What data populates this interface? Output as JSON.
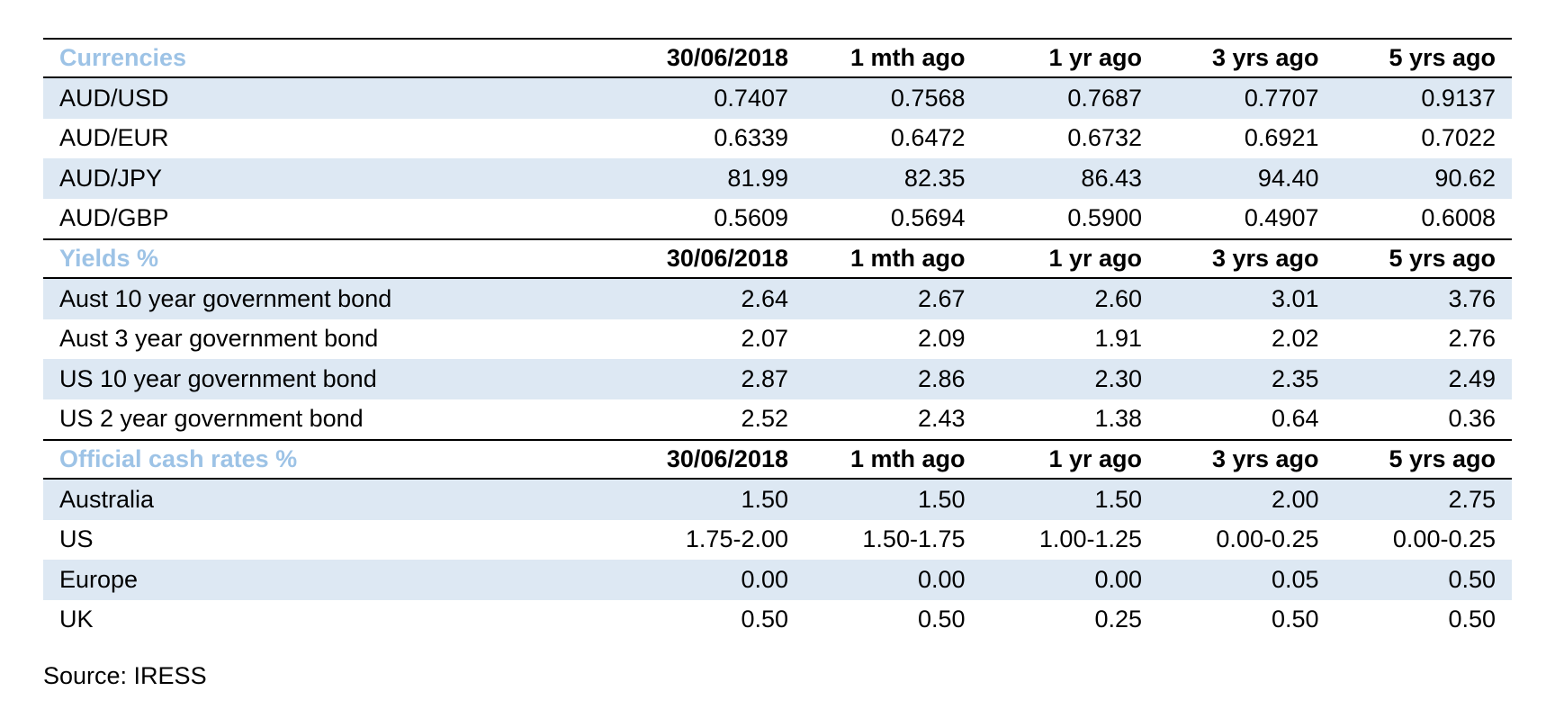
{
  "columns": [
    "30/06/2018",
    "1 mth ago",
    "1 yr ago",
    "3 yrs ago",
    "5 yrs ago"
  ],
  "sections": [
    {
      "title": "Currencies",
      "rows": [
        {
          "label": "AUD/USD",
          "values": [
            "0.7407",
            "0.7568",
            "0.7687",
            "0.7707",
            "0.9137"
          ]
        },
        {
          "label": "AUD/EUR",
          "values": [
            "0.6339",
            "0.6472",
            "0.6732",
            "0.6921",
            "0.7022"
          ]
        },
        {
          "label": "AUD/JPY",
          "values": [
            "81.99",
            "82.35",
            "86.43",
            "94.40",
            "90.62"
          ]
        },
        {
          "label": "AUD/GBP",
          "values": [
            "0.5609",
            "0.5694",
            "0.5900",
            "0.4907",
            "0.6008"
          ]
        }
      ]
    },
    {
      "title": "Yields %",
      "rows": [
        {
          "label": "Aust 10 year government bond",
          "values": [
            "2.64",
            "2.67",
            "2.60",
            "3.01",
            "3.76"
          ]
        },
        {
          "label": "Aust 3 year government bond",
          "values": [
            "2.07",
            "2.09",
            "1.91",
            "2.02",
            "2.76"
          ]
        },
        {
          "label": "US 10 year government bond",
          "values": [
            "2.87",
            "2.86",
            "2.30",
            "2.35",
            "2.49"
          ]
        },
        {
          "label": "US 2 year government bond",
          "values": [
            "2.52",
            "2.43",
            "1.38",
            "0.64",
            "0.36"
          ]
        }
      ]
    },
    {
      "title": "Official cash rates %",
      "rows": [
        {
          "label": "Australia",
          "values": [
            "1.50",
            "1.50",
            "1.50",
            "2.00",
            "2.75"
          ]
        },
        {
          "label": "US",
          "values": [
            "1.75-2.00",
            "1.50-1.75",
            "1.00-1.25",
            "0.00-0.25",
            "0.00-0.25"
          ]
        },
        {
          "label": "Europe",
          "values": [
            "0.00",
            "0.00",
            "0.00",
            "0.05",
            "0.50"
          ]
        },
        {
          "label": "UK",
          "values": [
            "0.50",
            "0.50",
            "0.25",
            "0.50",
            "0.50"
          ]
        }
      ]
    }
  ],
  "source": "Source: IRESS",
  "colors": {
    "section_title": "#9dc3e6",
    "row_shade": "#dde8f3",
    "rule": "#000000"
  }
}
